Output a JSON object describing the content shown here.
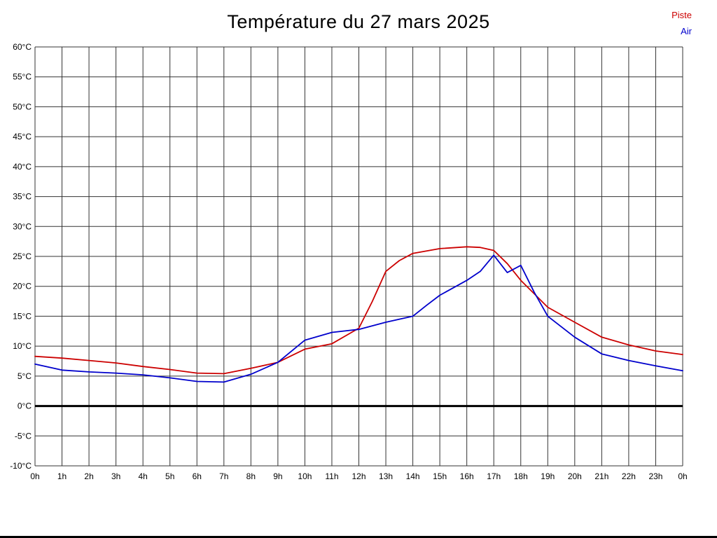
{
  "chart_data": {
    "type": "line",
    "title": "Température du 27 mars 2025",
    "xlabel": "",
    "ylabel": "",
    "xlim": [
      0,
      24
    ],
    "ylim": [
      -10,
      60
    ],
    "y_step": 5,
    "grid": true,
    "grid_color": "#333333",
    "zero_line": true,
    "zero_line_color": "#000000",
    "legend_position": "top-right",
    "x_ticks": [
      "0h",
      "1h",
      "2h",
      "3h",
      "4h",
      "5h",
      "6h",
      "7h",
      "8h",
      "9h",
      "10h",
      "11h",
      "12h",
      "13h",
      "14h",
      "15h",
      "16h",
      "17h",
      "18h",
      "19h",
      "20h",
      "21h",
      "22h",
      "23h",
      "0h"
    ],
    "y_ticks": [
      "60°C",
      "55°C",
      "50°C",
      "45°C",
      "40°C",
      "35°C",
      "30°C",
      "25°C",
      "20°C",
      "15°C",
      "10°C",
      "5°C",
      "0°C",
      "-5°C",
      "-10°C"
    ],
    "series": [
      {
        "name": "Piste",
        "color": "#cc0000",
        "x": [
          0,
          1,
          2,
          3,
          4,
          5,
          6,
          7,
          8,
          9,
          10,
          11,
          12,
          12.5,
          13,
          13.5,
          14,
          15,
          16,
          16.5,
          17,
          17.5,
          18,
          19,
          20,
          21,
          22,
          23,
          24
        ],
        "values": [
          8.3,
          8.0,
          7.6,
          7.2,
          6.6,
          6.1,
          5.5,
          5.4,
          6.3,
          7.3,
          9.5,
          10.4,
          13.0,
          17.5,
          22.5,
          24.3,
          25.5,
          26.3,
          26.6,
          26.5,
          26.0,
          23.8,
          21.0,
          16.5,
          14.0,
          11.5,
          10.2,
          9.2,
          8.6
        ]
      },
      {
        "name": "Air",
        "color": "#0000cc",
        "x": [
          0,
          1,
          2,
          3,
          4,
          5,
          6,
          7,
          8,
          9,
          10,
          11,
          12,
          13,
          14,
          14.5,
          15,
          16,
          16.5,
          17,
          17.5,
          18,
          18.5,
          19,
          20,
          21,
          22,
          23,
          24
        ],
        "values": [
          7.0,
          6.0,
          5.7,
          5.5,
          5.2,
          4.7,
          4.1,
          4.0,
          5.3,
          7.3,
          11.0,
          12.3,
          12.8,
          14.0,
          15.0,
          16.8,
          18.5,
          21.0,
          22.5,
          25.2,
          22.3,
          23.5,
          19.0,
          15.0,
          11.5,
          8.7,
          7.6,
          6.7,
          5.9
        ]
      }
    ]
  }
}
